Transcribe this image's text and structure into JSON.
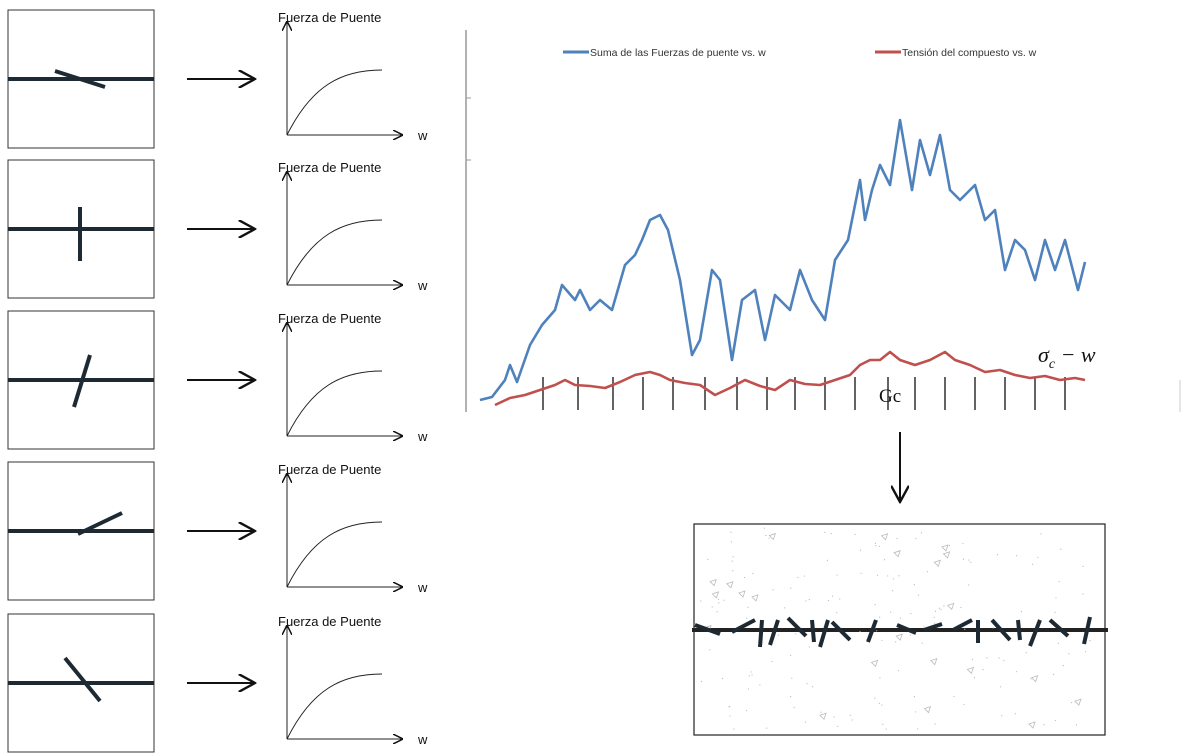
{
  "panels": [
    {
      "y_label": "Fuerza de Puente",
      "x_label": "w"
    },
    {
      "y_label": "Fuerza de Puente",
      "x_label": "w"
    },
    {
      "y_label": "Fuerza de Puente",
      "x_label": "w"
    },
    {
      "y_label": "Fuerza de Puente",
      "x_label": "w"
    },
    {
      "y_label": "Fuerza de Puente",
      "x_label": "w"
    }
  ],
  "chart_data": {
    "type": "line",
    "xlim": [
      0,
      719
    ],
    "ylim": [
      0,
      380
    ],
    "series": [
      {
        "name": "Suma de las Fuerzas de puente vs. w",
        "color": "#4f81bd",
        "x": [
          14,
          26,
          39,
          44,
          51,
          64,
          76,
          89,
          96,
          109,
          114,
          124,
          134,
          146,
          159,
          169,
          176,
          184,
          194,
          202,
          214,
          226,
          234,
          246,
          254,
          266,
          276,
          289,
          299,
          309,
          324,
          334,
          346,
          359,
          369,
          382,
          394,
          399,
          406,
          414,
          424,
          434,
          446,
          454,
          464,
          474,
          484,
          494,
          509,
          519,
          529,
          539,
          549,
          559,
          569,
          579,
          589,
          599,
          612,
          619
        ],
        "values": [
          10,
          13,
          30,
          45,
          28,
          65,
          85,
          100,
          125,
          110,
          120,
          100,
          110,
          100,
          145,
          155,
          170,
          190,
          195,
          180,
          130,
          55,
          70,
          140,
          130,
          50,
          110,
          120,
          70,
          115,
          100,
          140,
          110,
          90,
          150,
          170,
          230,
          190,
          220,
          245,
          225,
          290,
          220,
          270,
          235,
          275,
          220,
          210,
          225,
          190,
          200,
          140,
          170,
          160,
          130,
          170,
          140,
          170,
          120,
          148
        ]
      },
      {
        "name": "Tensión del compuesto vs. w",
        "color": "#c0504d",
        "x": [
          29,
          44,
          59,
          74,
          89,
          99,
          109,
          124,
          139,
          154,
          169,
          184,
          194,
          204,
          219,
          234,
          249,
          264,
          279,
          294,
          309,
          324,
          339,
          354,
          369,
          384,
          394,
          404,
          414,
          424,
          434,
          449,
          464,
          479,
          489,
          504,
          519,
          534,
          549,
          564,
          579,
          594,
          609,
          619
        ],
        "values": [
          5,
          12,
          15,
          20,
          25,
          30,
          25,
          24,
          22,
          28,
          35,
          38,
          35,
          30,
          27,
          25,
          15,
          22,
          30,
          24,
          20,
          30,
          26,
          25,
          30,
          35,
          45,
          50,
          50,
          58,
          50,
          45,
          50,
          58,
          50,
          45,
          38,
          40,
          35,
          32,
          34,
          30,
          32,
          30
        ]
      }
    ]
  },
  "annotations": {
    "sigma": "σ",
    "sigma_sub": "c",
    "sigma_rest": " − w",
    "gc": "Gc"
  }
}
